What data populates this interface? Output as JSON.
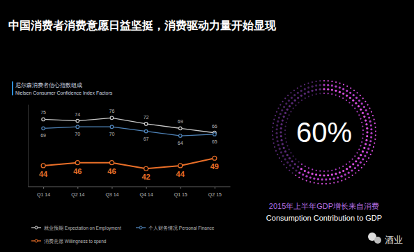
{
  "chart_data": {
    "type": "line",
    "title": "中国消费者消费意愿日益坚挺，消费驱动力量开始显现",
    "subtitle": [
      "尼尔森消费者信心指数组成",
      "Nielsen Consumer Confidence Index Factors"
    ],
    "categories": [
      "Q1 14",
      "Q2 14",
      "Q3 14",
      "Q4 14",
      "Q1 15",
      "Q2 15"
    ],
    "series": [
      {
        "name": "就业预期 Expectation on Employment",
        "color": "#c8c8c8",
        "marker": "circle",
        "values": [
          75,
          74,
          76,
          72,
          69,
          66
        ]
      },
      {
        "name": "个人财务情况 Personal Finance",
        "color": "#4f83b8",
        "marker": "circle",
        "values": [
          69,
          70,
          70,
          67,
          64,
          65
        ]
      },
      {
        "name": "消费意愿 Willingness to spend",
        "color": "#ea6f28",
        "marker": "circle",
        "values": [
          44,
          46,
          46,
          42,
          44,
          49
        ]
      }
    ],
    "ylim": [
      30,
      85
    ],
    "yticks": [],
    "tick_labels": "x",
    "grid": false,
    "legend": "bottom",
    "data_labels": true,
    "callout": {
      "value": 60,
      "label": "60%",
      "caption": "2015年上半年GDP增长来自消费",
      "caption_en": "Consumption Contribution to GDP"
    },
    "annotations": [
      "酒业"
    ]
  }
}
